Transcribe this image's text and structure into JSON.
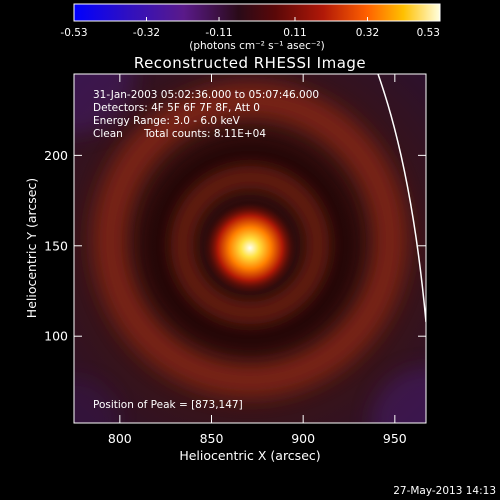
{
  "chart_data": {
    "type": "heatmap",
    "title": "Reconstructed RHESSI Image",
    "xlabel": "Heliocentric X (arcsec)",
    "ylabel": "Heliocentric Y (arcsec)",
    "xlim": [
      775,
      967
    ],
    "ylim": [
      52,
      245
    ],
    "x_ticks": [
      800,
      850,
      900,
      950
    ],
    "y_ticks": [
      100,
      150,
      200
    ],
    "colorbar": {
      "ticks": [
        "-0.53",
        "-0.32",
        "-0.11",
        "0.11",
        "0.32",
        "0.53"
      ],
      "min": -0.53,
      "max": 0.53,
      "unit_label": "(photons cm⁻² s⁻¹ asec⁻²)"
    },
    "annotations": {
      "time_range": "31-Jan-2003 05:02:36.000 to 05:07:46.000",
      "detectors": "Detectors: 4F 5F 6F 7F 8F, Att 0",
      "energy": "Energy Range: 3.0 - 6.0 keV",
      "method": "Clean",
      "counts": "Total counts: 8.11E+04",
      "peak": "Position of Peak = [873,147]"
    },
    "peak": {
      "x": 873,
      "y": 147
    },
    "timestamp": "27-May-2013 14:13"
  }
}
